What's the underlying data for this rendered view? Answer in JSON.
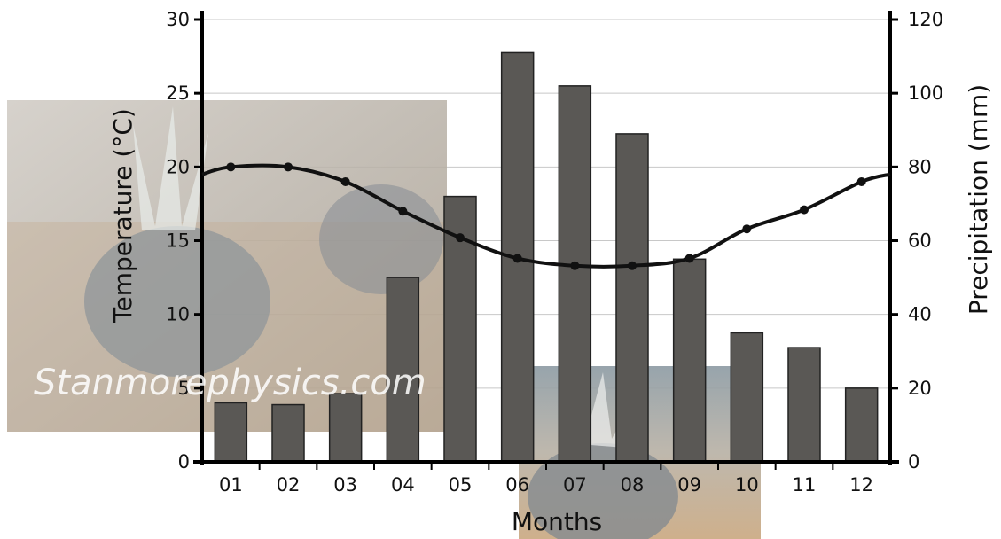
{
  "chart_data": {
    "type": "bar+line",
    "categories": [
      "01",
      "02",
      "03",
      "04",
      "05",
      "06",
      "07",
      "08",
      "09",
      "10",
      "11",
      "12"
    ],
    "series": [
      {
        "type": "bar",
        "axis": "right",
        "values": [
          16,
          15.5,
          18.5,
          50,
          72,
          111,
          102,
          89,
          55,
          35,
          31,
          20
        ]
      },
      {
        "type": "line",
        "axis": "left",
        "values": [
          20,
          20,
          19,
          17,
          15.2,
          13.8,
          13.3,
          13.3,
          13.8,
          15.8,
          17.1,
          19
        ]
      }
    ],
    "xlabel": "Months",
    "ylabel_left": "Temperature (°C)",
    "ylabel_right": "Precipitation (mm)",
    "ylim_left": [
      0,
      30
    ],
    "ylim_right": [
      0,
      120
    ],
    "yticks_left": [
      "0",
      "5",
      "10",
      "15",
      "20",
      "25",
      "30"
    ],
    "yticks_right": [
      "0",
      "20",
      "40",
      "60",
      "80",
      "100",
      "120"
    ],
    "grid": "horizontal",
    "watermark": "Stanmorephysics.com",
    "colors": {
      "bar": "#5a5855",
      "line": "#111111",
      "grid": "#c8c8c8"
    }
  }
}
